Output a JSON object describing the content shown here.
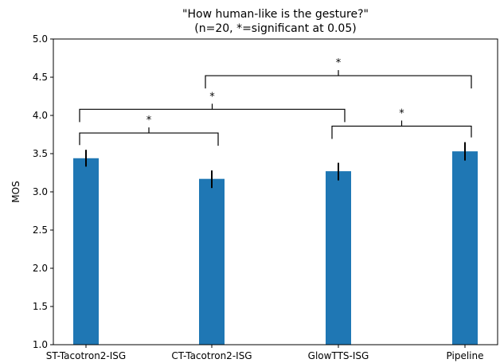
{
  "chart_data": {
    "type": "bar",
    "title": "\"How human-like is the gesture?\"",
    "subtitle": "(n=20, *=significant at 0.05)",
    "xlabel": "",
    "ylabel": "MOS",
    "ylim": [
      1.0,
      5.0
    ],
    "yticks": [
      "1.0",
      "1.5",
      "2.0",
      "2.5",
      "3.0",
      "3.5",
      "4.0",
      "4.5",
      "5.0"
    ],
    "categories": [
      "ST-Tacotron2-ISG",
      "CT-Tacotron2-ISG",
      "GlowTTS-ISG",
      "Pipeline"
    ],
    "values": [
      3.44,
      3.17,
      3.27,
      3.53
    ],
    "error_low": [
      3.33,
      3.05,
      3.15,
      3.41
    ],
    "error_high": [
      3.55,
      3.28,
      3.38,
      3.65
    ],
    "bar_color": "#1f77b4",
    "grid": false,
    "significance": [
      {
        "from": 0,
        "to": 1,
        "y": 3.77,
        "label": "*"
      },
      {
        "from": 2,
        "to": 3,
        "y": 3.86,
        "label": "*"
      },
      {
        "from": 0,
        "to": 2,
        "y": 4.08,
        "label": "*"
      },
      {
        "from": 1,
        "to": 3,
        "y": 4.52,
        "label": "*"
      }
    ]
  }
}
